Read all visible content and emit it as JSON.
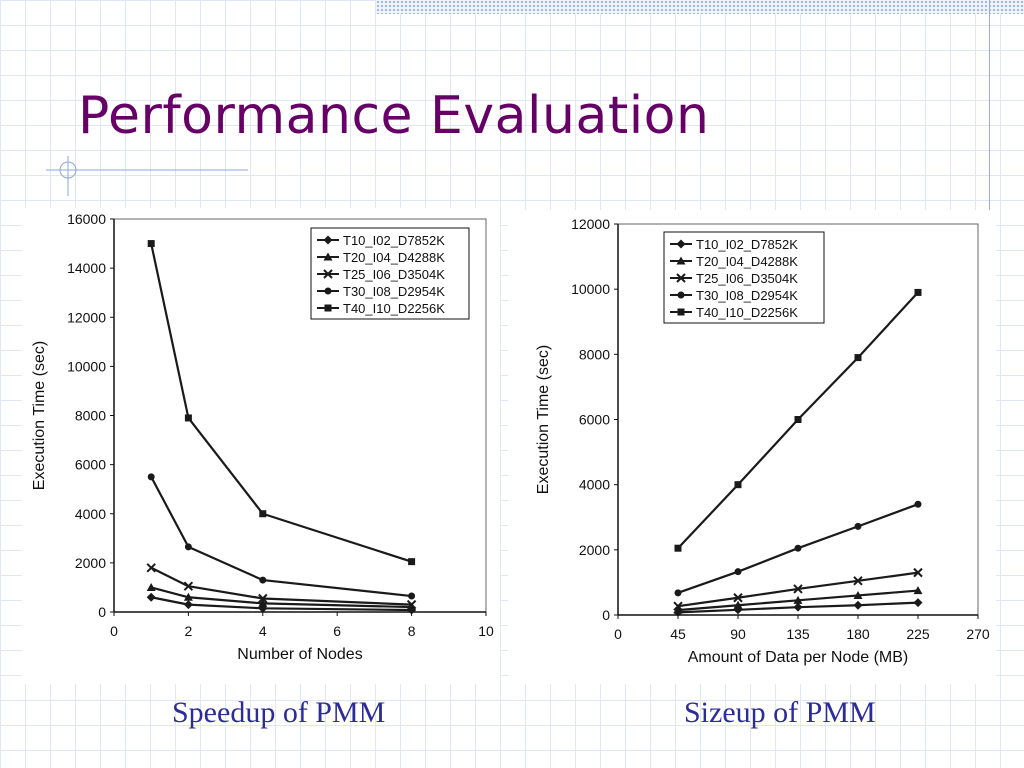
{
  "slide": {
    "title": "Performance Evaluation",
    "title_color": "#660066",
    "caption_color": "#2b2b9a"
  },
  "captions": {
    "left": "Speedup of PMM",
    "right": "Sizeup of PMM"
  },
  "chart_data": [
    {
      "type": "line",
      "xlabel": "Number of Nodes",
      "ylabel": "Execution Time (sec)",
      "xlim": [
        0,
        10
      ],
      "ylim": [
        0,
        16000
      ],
      "xticks": [
        0,
        2,
        4,
        6,
        8,
        10
      ],
      "yticks": [
        0,
        2000,
        4000,
        6000,
        8000,
        10000,
        12000,
        14000,
        16000
      ],
      "grid": false,
      "legend_position": "top-right",
      "x": [
        1,
        2,
        4,
        8
      ],
      "series": [
        {
          "name": "T10_I02_D7852K",
          "marker": "diamond",
          "values": [
            600,
            300,
            150,
            80
          ]
        },
        {
          "name": "T20_I04_D4288K",
          "marker": "triangle",
          "values": [
            1000,
            600,
            350,
            200
          ]
        },
        {
          "name": "T25_I06_D3504K",
          "marker": "x",
          "values": [
            1800,
            1050,
            550,
            300
          ]
        },
        {
          "name": "T30_I08_D2954K",
          "marker": "circle",
          "values": [
            5500,
            2650,
            1300,
            650
          ]
        },
        {
          "name": "T40_I10_D2256K",
          "marker": "square",
          "values": [
            15000,
            7900,
            4000,
            2050
          ]
        }
      ]
    },
    {
      "type": "line",
      "xlabel": "Amount of Data per Node (MB)",
      "ylabel": "Execution Time (sec)",
      "xlim": [
        0,
        270
      ],
      "ylim": [
        0,
        12000
      ],
      "xticks": [
        0,
        45,
        90,
        135,
        180,
        225,
        270
      ],
      "yticks": [
        0,
        2000,
        4000,
        6000,
        8000,
        10000,
        12000
      ],
      "grid": false,
      "legend_position": "top-left",
      "x": [
        45,
        90,
        135,
        180,
        225
      ],
      "series": [
        {
          "name": "T10_I02_D7852K",
          "marker": "diamond",
          "values": [
            80,
            160,
            240,
            300,
            380
          ]
        },
        {
          "name": "T20_I04_D4288K",
          "marker": "triangle",
          "values": [
            150,
            300,
            450,
            600,
            750
          ]
        },
        {
          "name": "T25_I06_D3504K",
          "marker": "x",
          "values": [
            270,
            530,
            800,
            1050,
            1300
          ]
        },
        {
          "name": "T30_I08_D2954K",
          "marker": "circle",
          "values": [
            680,
            1330,
            2050,
            2720,
            3400
          ]
        },
        {
          "name": "T40_I10_D2256K",
          "marker": "square",
          "values": [
            2050,
            4000,
            6000,
            7900,
            9900
          ]
        }
      ]
    }
  ]
}
